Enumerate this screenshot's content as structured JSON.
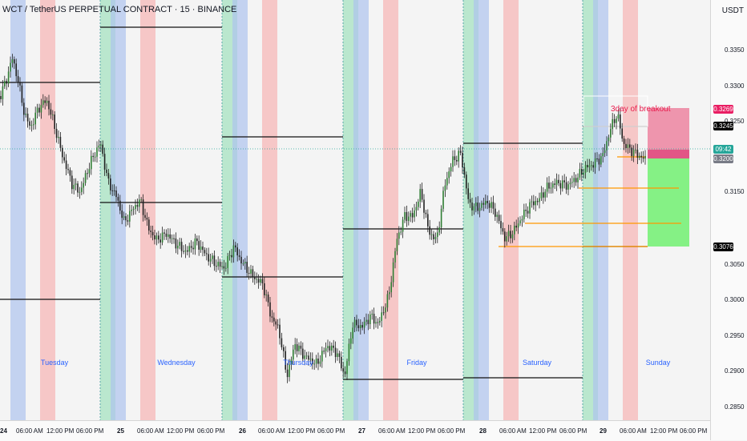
{
  "header": {
    "title": "WCT / TetherUS PERPETUAL CONTRACT · 15 · BINANCE",
    "currency": "USDT"
  },
  "price_axis": {
    "ticks": [
      "0.3350",
      "0.3300",
      "0.3250",
      "0.3200",
      "0.3150",
      "0.3100",
      "0.3050",
      "0.3000",
      "0.2950",
      "0.2900",
      "0.2850"
    ],
    "tags": [
      {
        "value": "0.3269",
        "color": "#e91e63"
      },
      {
        "value": "0.3245",
        "color": "#000000"
      },
      {
        "value": "09:42",
        "color": "#26a69a"
      },
      {
        "value": "0.3200",
        "color": "#787b86"
      },
      {
        "value": "0.3076",
        "color": "#000000"
      }
    ]
  },
  "time_axis": {
    "ticks": [
      "24",
      "06:00 AM",
      "12:00 PM",
      "06:00 PM",
      "25",
      "06:00 AM",
      "12:00 PM",
      "06:00 PM",
      "26",
      "06:00 AM",
      "12:00 PM",
      "06:00 PM",
      "27",
      "06:00 AM",
      "12:00 PM",
      "06:00 PM",
      "28",
      "06:00 AM",
      "12:00 PM",
      "06:00 PM",
      "29",
      "06:00 AM",
      "12:00 PM",
      "06:00 PM"
    ]
  },
  "day_labels": [
    "Tuesday",
    "Wednesday",
    "Thursday",
    "Friday",
    "Saturday",
    "Sunday"
  ],
  "annotation": "3day of breakout",
  "colors": {
    "bg": "#f4f4f4",
    "asia": "#aec3ee",
    "london": "#f6b3b3",
    "ny": "#a7e3c1",
    "target": "#7ef07e",
    "stop": "#ec84a0",
    "level": "#ff9800"
  }
}
